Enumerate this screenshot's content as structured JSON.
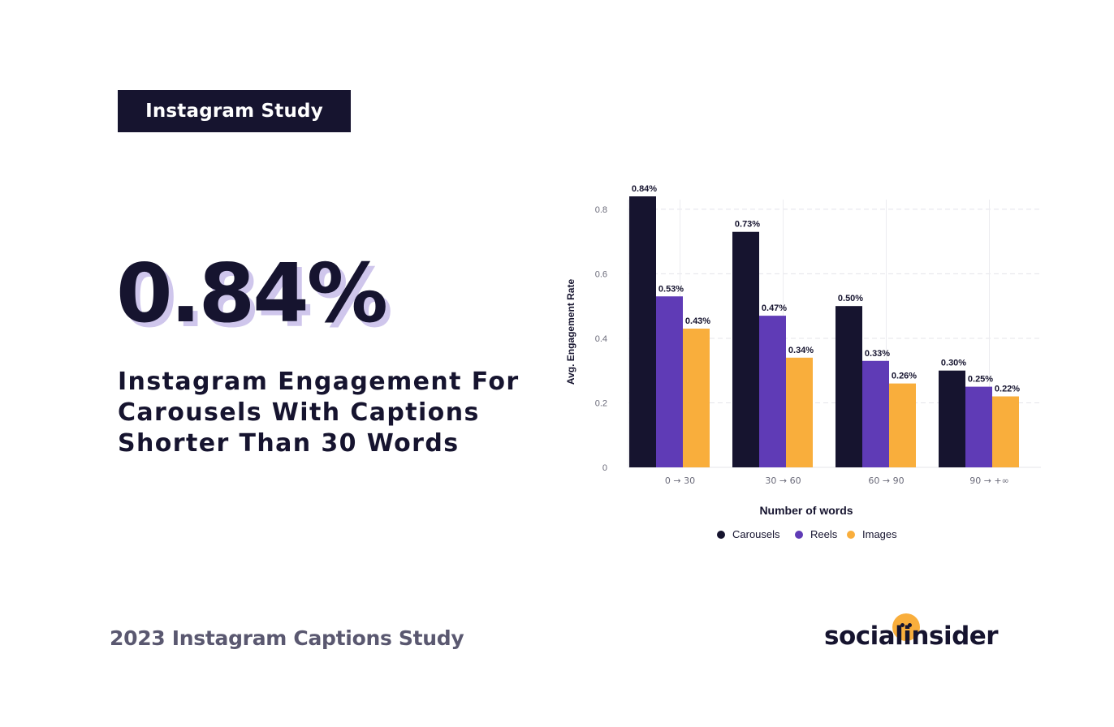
{
  "badge": {
    "label": "Instagram Study"
  },
  "stat": {
    "value": "0.84%"
  },
  "headline": {
    "lines": [
      "Instagram Engagement For",
      "Carousels With Captions",
      "Shorter Than 30 Words"
    ]
  },
  "footer": {
    "study_label": "2023 Instagram Captions Study"
  },
  "logo": {
    "text": "socialinsider",
    "accent_color": "#f9ae3c"
  },
  "colors": {
    "dark": "#16142f",
    "purple": "#5f3bb6",
    "orange": "#f9ae3c",
    "shadow": "#cfc6ec"
  },
  "chart_data": {
    "type": "bar",
    "categories": [
      "0 → 30",
      "30 → 60",
      "60 → 90",
      "90 → +∞"
    ],
    "series": [
      {
        "name": "Carousels",
        "color": "#16142f",
        "values": [
          0.84,
          0.73,
          0.5,
          0.3
        ],
        "labels": [
          "0.84%",
          "0.73%",
          "0.50%",
          "0.30%"
        ]
      },
      {
        "name": "Reels",
        "color": "#5f3bb6",
        "values": [
          0.53,
          0.47,
          0.33,
          0.25
        ],
        "labels": [
          "0.53%",
          "0.47%",
          "0.33%",
          "0.25%"
        ]
      },
      {
        "name": "Images",
        "color": "#f9ae3c",
        "values": [
          0.43,
          0.34,
          0.26,
          0.22
        ],
        "labels": [
          "0.43%",
          "0.34%",
          "0.26%",
          "0.22%"
        ]
      }
    ],
    "xlabel": "Number of words",
    "ylabel": "Avg. Engagement Rate",
    "yticks": [
      "0",
      "0.2",
      "0.4",
      "0.6",
      "0.8"
    ],
    "ytick_values": [
      0,
      0.2,
      0.4,
      0.6,
      0.8
    ],
    "ylim": [
      0,
      0.84
    ],
    "grid": true,
    "legend_position": "bottom"
  }
}
